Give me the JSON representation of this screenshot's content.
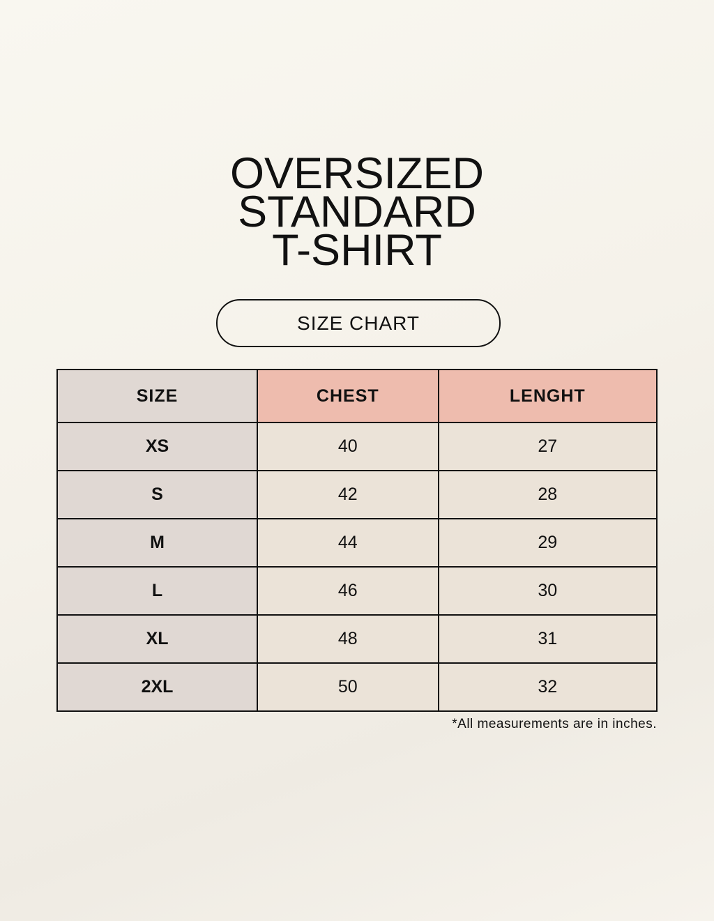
{
  "title": {
    "lines": [
      "OVERSIZED",
      "STANDARD",
      "T-SHIRT"
    ]
  },
  "subtitle": "SIZE CHART",
  "table": {
    "headers": [
      "SIZE",
      "CHEST",
      "LENGHT"
    ],
    "rows": [
      [
        "XS",
        "40",
        "27"
      ],
      [
        "S",
        "42",
        "28"
      ],
      [
        "M",
        "44",
        "29"
      ],
      [
        "L",
        "46",
        "30"
      ],
      [
        "XL",
        "48",
        "31"
      ],
      [
        "2XL",
        "50",
        "32"
      ]
    ]
  },
  "note": "*All measurements are in inches.",
  "colors": {
    "size_column": "#e0d8d3",
    "header_accent": "#eebcae",
    "cell": "#ebe3d8",
    "background": "#f8f6ef"
  }
}
